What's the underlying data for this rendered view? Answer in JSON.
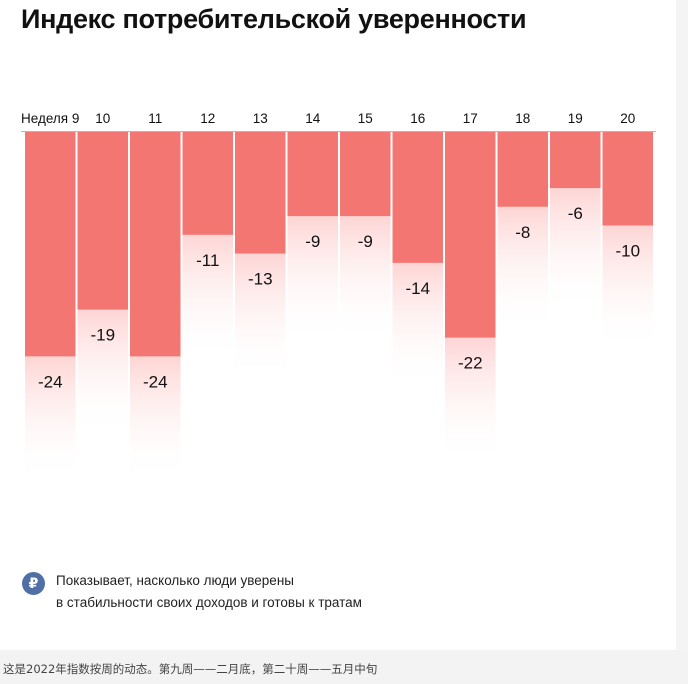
{
  "title": "Индекс потребительской уверенности",
  "chart_data": {
    "type": "bar",
    "title": "Индекс потребительской уверенности",
    "x_label_prefix": "Неделя",
    "categories": [
      "9",
      "10",
      "11",
      "12",
      "13",
      "14",
      "15",
      "16",
      "17",
      "18",
      "19",
      "20"
    ],
    "tick_labels": [
      "Неделя 9",
      "10",
      "11",
      "12",
      "13",
      "14",
      "15",
      "16",
      "17",
      "18",
      "19",
      "20"
    ],
    "values": [
      -24,
      -19,
      -24,
      -11,
      -13,
      -9,
      -9,
      -14,
      -22,
      -8,
      -6,
      -10
    ],
    "ylim": [
      -34,
      0
    ],
    "bar_color": "#f47672",
    "orientation": "bars hang down from zero line at top"
  },
  "legend": {
    "icon": "ruble-icon",
    "icon_glyph": "₽",
    "line1": "Показывает, насколько люди уверены",
    "line2": "в стабильности своих доходов и готовы к тратам"
  },
  "caption": "这是2022年指数按周的动态。第九周——二月底，第二十周——五月中旬"
}
